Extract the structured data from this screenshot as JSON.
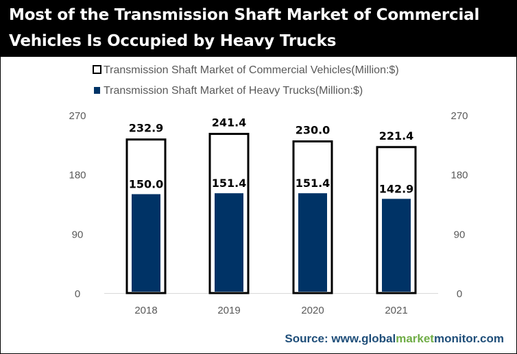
{
  "title": {
    "line1": "Most of the Transmission Shaft Market of  Commercial",
    "line2": "Vehicles Is Occupied by Heavy Trucks"
  },
  "source": {
    "prefix": "Source: www.",
    "part_global": "global",
    "part_market": "market",
    "part_monitor": "monitor",
    "suffix": ".com"
  },
  "colors": {
    "title_bg": "#000000",
    "heavy_trucks_bar": "#003366",
    "commercial_bar_border": "#000000",
    "source_blue": "#1f4e79",
    "source_green": "#70ad47"
  },
  "chart_data": {
    "type": "bar",
    "categories": [
      "2018",
      "2019",
      "2020",
      "2021"
    ],
    "series": [
      {
        "name": "Transmission Shaft Market of Commercial Vehicles(Million:$)",
        "values": [
          232.9,
          241.4,
          230.0,
          221.4
        ],
        "labels": [
          "232.9",
          "241.4",
          "230.0",
          "221.4"
        ],
        "style": "outline"
      },
      {
        "name": "Transmission Shaft Market of Heavy Trucks(Million:$)",
        "values": [
          150.0,
          151.4,
          151.4,
          142.9
        ],
        "labels": [
          "150.0",
          "151.4",
          "151.4",
          "142.9"
        ],
        "style": "filled"
      }
    ],
    "ylim": [
      0,
      270
    ],
    "yticks": [
      "0",
      "90",
      "180",
      "270"
    ],
    "ytick_values": [
      0,
      90,
      180,
      270
    ],
    "secondary_axis": true,
    "legend_position": "top",
    "grid": false
  }
}
